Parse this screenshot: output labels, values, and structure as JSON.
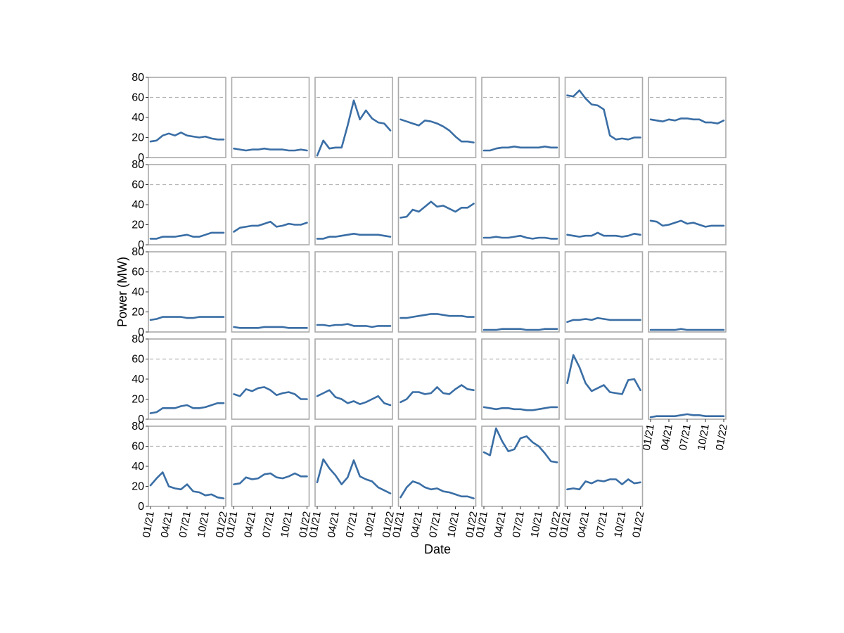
{
  "chart_data": {
    "type": "line",
    "layout": "small-multiples",
    "xlabel": "Date",
    "ylabel": "Power (MW)",
    "ylim": [
      0,
      80
    ],
    "y_ticks": [
      0,
      20,
      40,
      60,
      80
    ],
    "reference_line": {
      "y": 60,
      "style": "dashed"
    },
    "grid": false,
    "x_ticks": [
      "01/21",
      "04/21",
      "07/21",
      "10/21",
      "01/22"
    ],
    "x_tick_month_index": [
      0,
      3,
      6,
      9,
      12
    ],
    "x": [
      "2021-01",
      "2021-02",
      "2021-03",
      "2021-04",
      "2021-05",
      "2021-06",
      "2021-07",
      "2021-08",
      "2021-09",
      "2021-10",
      "2021-11",
      "2021-12",
      "2022-01"
    ],
    "line_color": "#3a6ea5",
    "panel_border_color": "#aaaaaa",
    "panels": [
      [
        16,
        17,
        22,
        24,
        22,
        25,
        22,
        21,
        20,
        21,
        19,
        18,
        18
      ],
      [
        9,
        8,
        7,
        8,
        8,
        9,
        8,
        8,
        8,
        7,
        7,
        8,
        7
      ],
      [
        2,
        17,
        9,
        10,
        10,
        32,
        57,
        38,
        47,
        39,
        35,
        34,
        27
      ],
      [
        38,
        36,
        34,
        32,
        37,
        36,
        34,
        31,
        27,
        21,
        16,
        16,
        15
      ],
      [
        7,
        7,
        9,
        10,
        10,
        11,
        10,
        10,
        10,
        10,
        11,
        10,
        10
      ],
      [
        62,
        61,
        67,
        59,
        53,
        52,
        48,
        22,
        18,
        19,
        18,
        20,
        20
      ],
      [
        38,
        37,
        36,
        38,
        37,
        39,
        39,
        38,
        38,
        35,
        35,
        34,
        37
      ],
      [
        6,
        6,
        8,
        8,
        8,
        9,
        10,
        8,
        8,
        10,
        12,
        12,
        12
      ],
      [
        13,
        17,
        18,
        19,
        19,
        21,
        23,
        18,
        19,
        21,
        20,
        20,
        22
      ],
      [
        6,
        6,
        8,
        8,
        9,
        10,
        11,
        10,
        10,
        10,
        10,
        9,
        8
      ],
      [
        27,
        28,
        35,
        33,
        38,
        43,
        38,
        39,
        36,
        33,
        37,
        37,
        41
      ],
      [
        7,
        7,
        8,
        7,
        7,
        8,
        9,
        7,
        6,
        7,
        7,
        6,
        6
      ],
      [
        10,
        9,
        8,
        9,
        9,
        12,
        9,
        9,
        9,
        8,
        9,
        11,
        10
      ],
      [
        24,
        23,
        19,
        20,
        22,
        24,
        21,
        22,
        20,
        18,
        19,
        19,
        19
      ],
      [
        12,
        13,
        15,
        15,
        15,
        15,
        14,
        14,
        15,
        15,
        15,
        15,
        15
      ],
      [
        5,
        4,
        4,
        4,
        4,
        5,
        5,
        5,
        5,
        4,
        4,
        4,
        4
      ],
      [
        7,
        7,
        6,
        7,
        7,
        8,
        6,
        6,
        6,
        5,
        6,
        6,
        6
      ],
      [
        14,
        14,
        15,
        16,
        17,
        18,
        18,
        17,
        16,
        16,
        16,
        15,
        15
      ],
      [
        2,
        2,
        2,
        3,
        3,
        3,
        3,
        2,
        2,
        2,
        3,
        3,
        3
      ],
      [
        10,
        12,
        12,
        13,
        12,
        14,
        13,
        12,
        12,
        12,
        12,
        12,
        12
      ],
      [
        2,
        2,
        2,
        2,
        2,
        3,
        2,
        2,
        2,
        2,
        2,
        2,
        2
      ],
      [
        6,
        7,
        11,
        11,
        11,
        13,
        14,
        11,
        11,
        12,
        14,
        16,
        16
      ],
      [
        25,
        23,
        30,
        28,
        31,
        32,
        29,
        24,
        26,
        27,
        25,
        20,
        20
      ],
      [
        23,
        26,
        29,
        22,
        20,
        16,
        18,
        15,
        17,
        20,
        23,
        16,
        14
      ],
      [
        17,
        20,
        27,
        27,
        25,
        26,
        32,
        26,
        25,
        30,
        34,
        30,
        29
      ],
      [
        12,
        11,
        10,
        11,
        11,
        10,
        10,
        9,
        9,
        10,
        11,
        12,
        12
      ],
      [
        36,
        64,
        52,
        36,
        28,
        31,
        34,
        27,
        26,
        25,
        39,
        40,
        29
      ],
      [
        2,
        3,
        3,
        3,
        3,
        4,
        5,
        4,
        4,
        3,
        3,
        3,
        3
      ],
      [
        21,
        28,
        34,
        20,
        18,
        17,
        22,
        15,
        14,
        11,
        12,
        9,
        8
      ],
      [
        22,
        23,
        29,
        27,
        28,
        32,
        33,
        29,
        28,
        30,
        33,
        30,
        30
      ],
      [
        24,
        47,
        38,
        31,
        22,
        29,
        46,
        30,
        27,
        25,
        19,
        16,
        13
      ],
      [
        9,
        19,
        25,
        23,
        19,
        17,
        18,
        15,
        14,
        12,
        10,
        10,
        8
      ],
      [
        54,
        51,
        78,
        65,
        55,
        57,
        68,
        70,
        64,
        60,
        53,
        45,
        44
      ],
      [
        17,
        18,
        17,
        25,
        23,
        26,
        25,
        27,
        27,
        22,
        27,
        23,
        24
      ]
    ]
  }
}
